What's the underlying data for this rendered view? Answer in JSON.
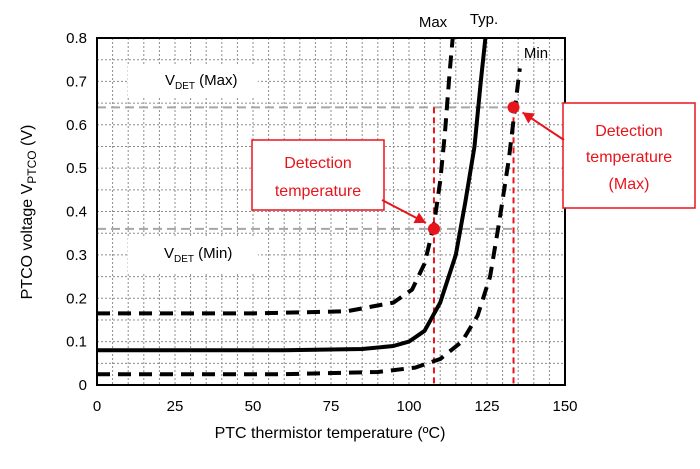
{
  "chart_data": {
    "type": "line",
    "xlabel": "PTC thermistor temperature (ºC)",
    "ylabel_main": "PTCO voltage V",
    "ylabel_sub": "PTCO",
    "ylabel_suffix": " (V)",
    "xlim": [
      0,
      150
    ],
    "ylim": [
      0,
      0.8
    ],
    "x_ticks": [
      0,
      25,
      50,
      75,
      100,
      125,
      150
    ],
    "y_ticks": [
      0,
      0.1,
      0.2,
      0.3,
      0.4,
      0.5,
      0.6,
      0.7,
      0.8
    ],
    "grid": true,
    "series": [
      {
        "name": "Max",
        "style": "dashed",
        "color": "#000000",
        "points": [
          [
            0,
            0.165
          ],
          [
            50,
            0.165
          ],
          [
            80,
            0.17
          ],
          [
            95,
            0.19
          ],
          [
            101,
            0.22
          ],
          [
            105,
            0.28
          ],
          [
            108,
            0.37
          ],
          [
            110,
            0.47
          ],
          [
            111.5,
            0.58
          ],
          [
            113,
            0.72
          ],
          [
            114,
            0.8
          ]
        ]
      },
      {
        "name": "Typ.",
        "style": "solid",
        "color": "#000000",
        "points": [
          [
            0,
            0.08
          ],
          [
            60,
            0.08
          ],
          [
            85,
            0.083
          ],
          [
            95,
            0.09
          ],
          [
            100,
            0.1
          ],
          [
            105,
            0.125
          ],
          [
            110,
            0.19
          ],
          [
            115,
            0.3
          ],
          [
            118,
            0.42
          ],
          [
            121,
            0.55
          ],
          [
            123,
            0.7
          ],
          [
            124.5,
            0.8
          ]
        ]
      },
      {
        "name": "Min",
        "style": "dashed",
        "color": "#000000",
        "points": [
          [
            0,
            0.025
          ],
          [
            60,
            0.025
          ],
          [
            90,
            0.03
          ],
          [
            102,
            0.04
          ],
          [
            110,
            0.06
          ],
          [
            117,
            0.1
          ],
          [
            122,
            0.16
          ],
          [
            126,
            0.25
          ],
          [
            129,
            0.38
          ],
          [
            132,
            0.52
          ],
          [
            134,
            0.64
          ],
          [
            135.5,
            0.73
          ]
        ]
      }
    ],
    "thresholds": [
      {
        "label_main": "V",
        "label_sub": "DET",
        "label_suffix": " (Max)",
        "y": 0.64
      },
      {
        "label_main": "V",
        "label_sub": "DET",
        "label_suffix": " (Min)",
        "y": 0.36
      }
    ],
    "detection_markers": [
      {
        "x": 108,
        "y": 0.36,
        "label_lines": [
          "Detection",
          "temperature"
        ]
      },
      {
        "x": 133.5,
        "y": 0.64,
        "label_lines": [
          "Detection",
          "temperature",
          "(Max)"
        ]
      }
    ],
    "colors": {
      "accent": "#e8141b",
      "threshold": "#a6a6a6",
      "grid": "#8c8c8c"
    }
  }
}
